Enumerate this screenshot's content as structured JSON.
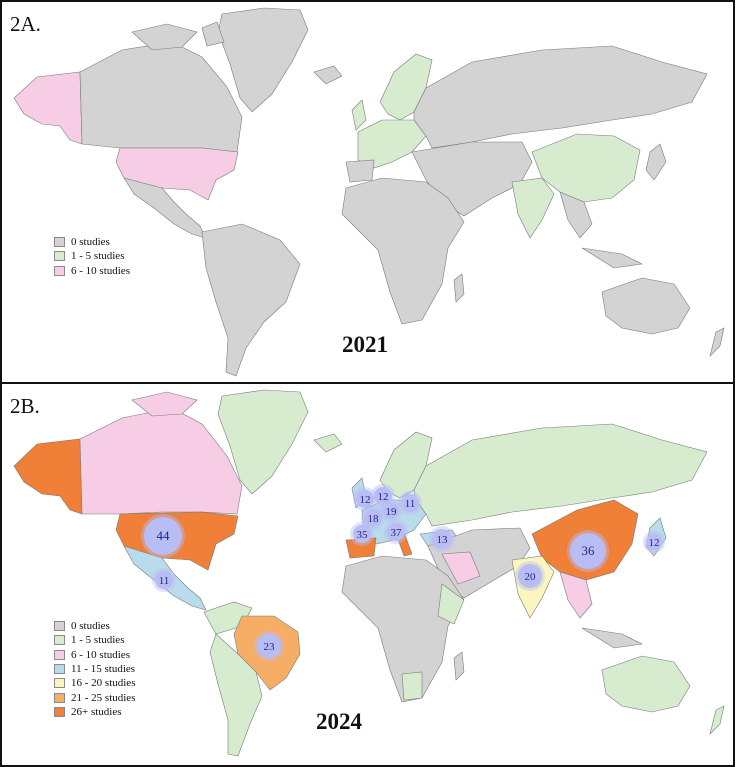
{
  "colors": {
    "ocean": "#ffffff",
    "border": "#7a7a7a",
    "c0": "#d3d3d3",
    "c1": "#d7eccf",
    "c2": "#f6cde5",
    "c3": "#b9dcec",
    "c4": "#fbf6c0",
    "c5": "#f6ad66",
    "c6": "#f07f37",
    "bubble_fill": "#b8bdf4",
    "bubble_text": "#24248a"
  },
  "panelA": {
    "label": "2A.",
    "year": "2021",
    "legend": [
      {
        "text": "0 studies",
        "color": "#d3d3d3"
      },
      {
        "text": "1 - 5 studies",
        "color": "#d7eccf"
      },
      {
        "text": "6 - 10 studies",
        "color": "#f6cde5"
      }
    ]
  },
  "panelB": {
    "label": "2B.",
    "year": "2024",
    "legend": [
      {
        "text": "0 studies",
        "color": "#d3d3d3"
      },
      {
        "text": "1 - 5 studies",
        "color": "#d7eccf"
      },
      {
        "text": "6 - 10 studies",
        "color": "#f6cde5"
      },
      {
        "text": "11 - 15 studies",
        "color": "#b9dcec"
      },
      {
        "text": "16 - 20 studies",
        "color": "#fbf6c0"
      },
      {
        "text": "21 - 25 studies",
        "color": "#f6ad66"
      },
      {
        "text": "26+ studies",
        "color": "#f07f37"
      }
    ],
    "bubbles": [
      {
        "value": "44"
      },
      {
        "value": "11"
      },
      {
        "value": "23"
      },
      {
        "value": "12"
      },
      {
        "value": "12"
      },
      {
        "value": "19"
      },
      {
        "value": "11"
      },
      {
        "value": "18"
      },
      {
        "value": "35"
      },
      {
        "value": "37"
      },
      {
        "value": "13"
      },
      {
        "value": "20"
      },
      {
        "value": "36"
      },
      {
        "value": "12"
      }
    ]
  }
}
